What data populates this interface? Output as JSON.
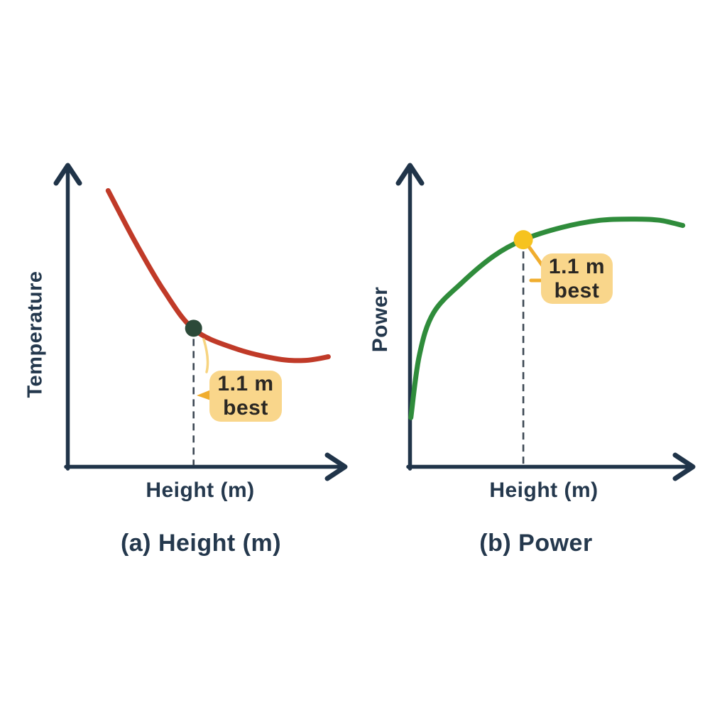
{
  "page": {
    "background": "#ffffff"
  },
  "palette": {
    "axis": "#203449",
    "label_text": "#24384d",
    "dashed_line": "#3d4854",
    "callout_bg": "#f9d68b",
    "callout_text": "#2a2723",
    "leader_yellow": "#f0ad2e",
    "curve_a": "#c03a28",
    "curve_b": "#2f8c3b",
    "marker_a": "#2c4a39",
    "marker_b": "#f6c31f"
  },
  "chart_data": {
    "type": "line",
    "description": "Two qualitative sketch-style curves (no tick labels) comparing Temperature and Power versus mounting Height; both annotate 1.1 m as the best height with a dot, dashed drop line and a yellow callout.",
    "charts": [
      {
        "id": "a",
        "caption": "(a) Height (m)",
        "xlabel": "Height (m)",
        "ylabel": "Temperature",
        "axis_ticks": "none (qualitative sketch)",
        "grid": false,
        "series": [
          {
            "name": "Temperature vs Height",
            "color": "#c03a28",
            "shape": "decreasing convex curve, steep at low height, flattens at high height",
            "points_norm": [
              [
                0.145,
                0.911
              ],
              [
                0.242,
                0.742
              ],
              [
                0.344,
                0.583
              ],
              [
                0.452,
                0.454
              ],
              [
                0.599,
                0.391
              ],
              [
                0.753,
                0.356
              ],
              [
                0.854,
                0.351
              ],
              [
                0.936,
                0.363
              ]
            ]
          }
        ],
        "marker": {
          "label": "1.1 m best",
          "point_norm": [
            0.452,
            0.457
          ],
          "color": "#2c4a39"
        },
        "annotation": {
          "line1": "1.1 m",
          "line2": "best"
        }
      },
      {
        "id": "b",
        "caption": "(b) Power",
        "xlabel": "Height (m)",
        "ylabel": "Power",
        "axis_ticks": "none (qualitative sketch)",
        "grid": false,
        "series": [
          {
            "name": "Power vs Height",
            "color": "#2f8c3b",
            "shape": "rising saturating curve, levels off and dips slightly at far right",
            "points_norm": [
              [
                0.003,
                0.162
              ],
              [
                0.033,
                0.368
              ],
              [
                0.083,
                0.508
              ],
              [
                0.183,
                0.607
              ],
              [
                0.295,
                0.695
              ],
              [
                0.4,
                0.749
              ],
              [
                0.533,
                0.789
              ],
              [
                0.67,
                0.813
              ],
              [
                0.795,
                0.817
              ],
              [
                0.883,
                0.813
              ],
              [
                0.963,
                0.796
              ]
            ]
          }
        ],
        "marker": {
          "label": "1.1 m best",
          "point_norm": [
            0.4,
            0.749
          ],
          "color": "#f6c31f"
        },
        "annotation": {
          "line1": "1.1 m",
          "line2": "best"
        }
      }
    ]
  }
}
